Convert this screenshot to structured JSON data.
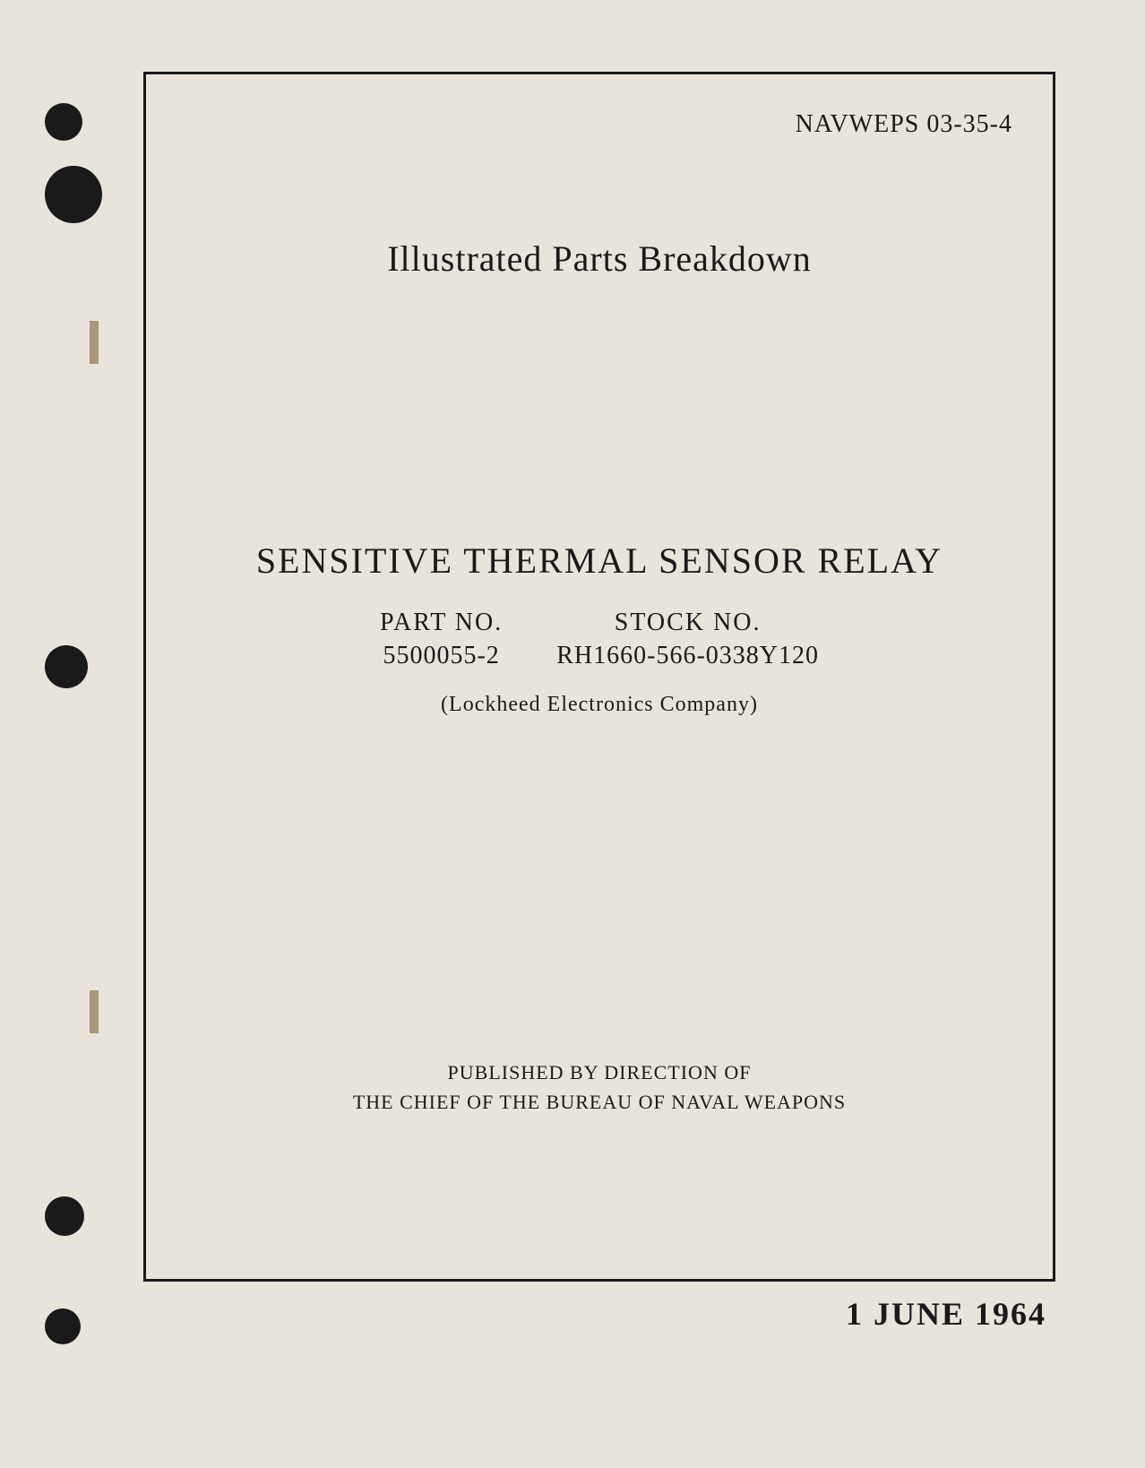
{
  "document": {
    "doc_number": "NAVWEPS 03-35-4",
    "subtitle": "Illustrated Parts Breakdown",
    "main_title": "SENSITIVE THERMAL SENSOR RELAY",
    "part": {
      "label": "PART NO.",
      "value": "5500055-2"
    },
    "stock": {
      "label": "STOCK NO.",
      "value": "RH1660-566-0338Y120"
    },
    "company": "(Lockheed Electronics Company)",
    "published_line1": "PUBLISHED BY DIRECTION OF",
    "published_line2": "THE CHIEF OF THE BUREAU OF NAVAL WEAPONS",
    "date": "1 JUNE 1964"
  },
  "styling": {
    "page_background": "#e8e4db",
    "text_color": "#1a1a1a",
    "border_color": "#1a1a1a",
    "border_width": 3,
    "hole_color": "#1a1a1a",
    "staple_color": "#a89878",
    "doc_number_fontsize": 28,
    "subtitle_fontsize": 40,
    "main_title_fontsize": 40,
    "part_stock_fontsize": 28,
    "company_fontsize": 24,
    "published_fontsize": 22,
    "date_fontsize": 36,
    "font_family": "Georgia, Times New Roman, serif"
  }
}
